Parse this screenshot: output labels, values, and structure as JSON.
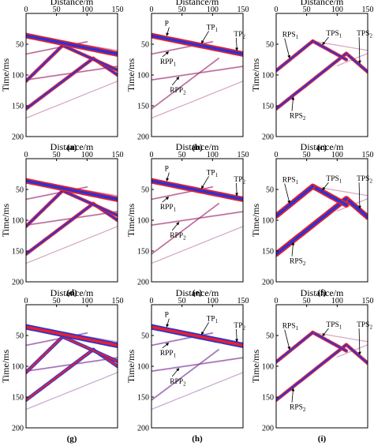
{
  "figure": {
    "xlabel": "Distance/m",
    "ylabel": "Time/ms",
    "x_ticks": [
      "0",
      "50",
      "100",
      "150"
    ],
    "y_ticks": [
      "50",
      "100",
      "150",
      "200"
    ],
    "colors": {
      "positive": "#e8202a",
      "negative": "#2a33d6",
      "frame": "#000000"
    }
  },
  "chart_data": [
    {
      "type": "heatmap",
      "label": "(a)",
      "xlim": [
        0,
        150
      ],
      "ylim": [
        200,
        0
      ],
      "annotations": []
    },
    {
      "type": "heatmap",
      "label": "(b)",
      "xlim": [
        0,
        150
      ],
      "ylim": [
        200,
        0
      ],
      "annotations": [
        "P",
        "TP1",
        "TP2",
        "RPP1",
        "RPP2"
      ]
    },
    {
      "type": "heatmap",
      "label": "(c)",
      "xlim": [
        0,
        150
      ],
      "ylim": [
        200,
        0
      ],
      "annotations": [
        "RPS1",
        "TPS1",
        "TPS2",
        "RPS2"
      ]
    },
    {
      "type": "heatmap",
      "label": "(d)",
      "xlim": [
        0,
        150
      ],
      "ylim": [
        200,
        0
      ],
      "annotations": []
    },
    {
      "type": "heatmap",
      "label": "(e)",
      "xlim": [
        0,
        150
      ],
      "ylim": [
        200,
        0
      ],
      "annotations": [
        "P",
        "TP1",
        "TP2",
        "RPP1",
        "RPP2"
      ]
    },
    {
      "type": "heatmap",
      "label": "(f)",
      "xlim": [
        0,
        150
      ],
      "ylim": [
        200,
        0
      ],
      "annotations": [
        "RPS1",
        "TPS1",
        "TPS2",
        "RPS2"
      ]
    },
    {
      "type": "heatmap",
      "label": "(g)",
      "xlim": [
        0,
        150
      ],
      "ylim": [
        200,
        0
      ],
      "annotations": []
    },
    {
      "type": "heatmap",
      "label": "(h)",
      "xlim": [
        0,
        150
      ],
      "ylim": [
        200,
        0
      ],
      "annotations": [
        "P",
        "TP1",
        "TP2",
        "RPP1",
        "RPP2"
      ]
    },
    {
      "type": "heatmap",
      "label": "(i)",
      "xlim": [
        0,
        150
      ],
      "ylim": [
        200,
        0
      ],
      "annotations": [
        "RPS1",
        "TPS1",
        "TPS2",
        "RPS2"
      ]
    }
  ]
}
